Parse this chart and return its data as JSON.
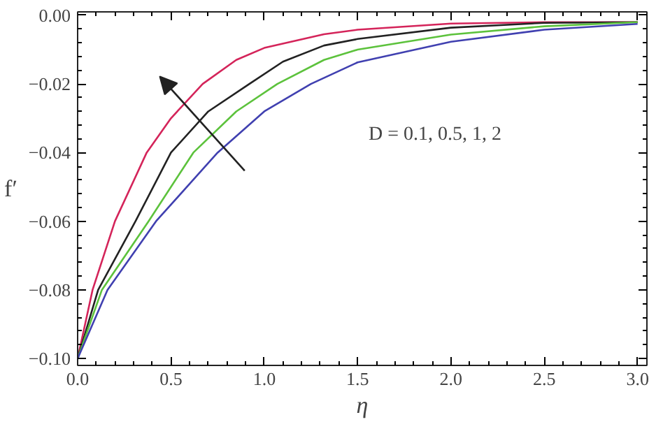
{
  "chart_data": {
    "type": "line",
    "xlabel": "η",
    "ylabel": "f′",
    "xlim": [
      0,
      3.05
    ],
    "ylim": [
      -0.102,
      0.001
    ],
    "xticks": [
      {
        "value": 0,
        "label": "0.0"
      },
      {
        "value": 0.5,
        "label": "0.5"
      },
      {
        "value": 1,
        "label": "1.0"
      },
      {
        "value": 1.5,
        "label": "1.5"
      },
      {
        "value": 2,
        "label": "2.0"
      },
      {
        "value": 2.5,
        "label": "2.5"
      },
      {
        "value": 3,
        "label": "3.0"
      }
    ],
    "yticks": [
      {
        "value": 0,
        "label": "0.00"
      },
      {
        "value": -0.02,
        "label": "−0.02"
      },
      {
        "value": -0.04,
        "label": "−0.04"
      },
      {
        "value": -0.06,
        "label": "−0.06"
      },
      {
        "value": -0.08,
        "label": "−0.08"
      },
      {
        "value": -0.1,
        "label": "−0.10"
      }
    ],
    "grid": false,
    "marker": "none",
    "line_style": "solid",
    "annotations": [
      "D = 0.1, 0.5, 1, 2"
    ],
    "series": [
      {
        "color": "#d4245a",
        "x": [
          0,
          0.08,
          0.2,
          0.37,
          0.5,
          0.67,
          0.85,
          1.0,
          1.32,
          1.5,
          2.0,
          2.5,
          3.0
        ],
        "values": [
          -0.1,
          -0.08,
          -0.06,
          -0.04,
          -0.03,
          -0.02,
          -0.013,
          -0.0095,
          -0.0055,
          -0.0042,
          -0.0024,
          -0.002,
          -0.002
        ]
      },
      {
        "color": "#222222",
        "x": [
          0,
          0.11,
          0.31,
          0.5,
          0.7,
          0.92,
          1.1,
          1.32,
          1.5,
          2.0,
          2.5,
          3.0
        ],
        "values": [
          -0.1,
          -0.08,
          -0.06,
          -0.04,
          -0.028,
          -0.02,
          -0.0135,
          -0.0088,
          -0.0069,
          -0.0036,
          -0.0022,
          -0.002
        ]
      },
      {
        "color": "#5cc23c",
        "x": [
          0,
          0.13,
          0.38,
          0.62,
          0.85,
          1.07,
          1.32,
          1.5,
          2.0,
          2.5,
          3.0
        ],
        "values": [
          -0.1,
          -0.08,
          -0.06,
          -0.04,
          -0.028,
          -0.02,
          -0.013,
          -0.01,
          -0.0056,
          -0.0032,
          -0.002
        ]
      },
      {
        "color": "#4040b0",
        "x": [
          0,
          0.16,
          0.42,
          0.75,
          1.0,
          1.25,
          1.5,
          2.0,
          2.5,
          3.0
        ],
        "values": [
          -0.1,
          -0.08,
          -0.06,
          -0.04,
          -0.028,
          -0.02,
          -0.0137,
          -0.0077,
          -0.0042,
          -0.0025
        ]
      }
    ]
  }
}
